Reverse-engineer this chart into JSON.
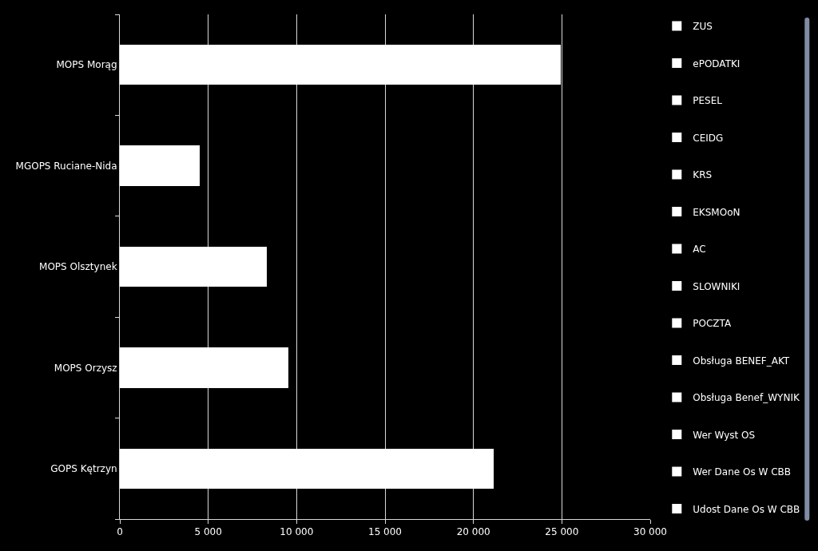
{
  "chart_data": {
    "type": "bar",
    "orientation": "horizontal",
    "stacked": true,
    "categories": [
      "MOPS Morąg",
      "MGOPS Ruciane-Nida",
      "MOPS Olsztynek",
      "MOPS Orzysz",
      "GOPS Kętrzyn"
    ],
    "series": [
      {
        "name": "ZUS",
        "color": "#ffffff",
        "values": [
          24950,
          4540,
          8300,
          9550,
          21150
        ]
      },
      {
        "name": "ePODATKI",
        "color": "#ffffff",
        "values": [
          null,
          null,
          null,
          null,
          null
        ]
      },
      {
        "name": "PESEL",
        "color": "#ffffff",
        "values": [
          null,
          null,
          null,
          null,
          null
        ]
      },
      {
        "name": "CEIDG",
        "color": "#ffffff",
        "values": [
          null,
          null,
          null,
          null,
          null
        ]
      },
      {
        "name": "KRS",
        "color": "#ffffff",
        "values": [
          null,
          null,
          null,
          null,
          null
        ]
      },
      {
        "name": "EKSMOoN",
        "color": "#ffffff",
        "values": [
          null,
          null,
          null,
          null,
          null
        ]
      },
      {
        "name": "AC",
        "color": "#ffffff",
        "values": [
          null,
          null,
          null,
          null,
          null
        ]
      },
      {
        "name": "SLOWNIKI",
        "color": "#ffffff",
        "values": [
          null,
          null,
          null,
          null,
          null
        ]
      },
      {
        "name": "POCZTA",
        "color": "#ffffff",
        "values": [
          null,
          null,
          null,
          null,
          null
        ]
      },
      {
        "name": "Obsługa BENEF_AKT",
        "color": "#ffffff",
        "values": [
          null,
          null,
          null,
          null,
          null
        ]
      },
      {
        "name": "Obsługa Benef_WYNIK",
        "color": "#ffffff",
        "values": [
          null,
          null,
          null,
          null,
          null
        ]
      },
      {
        "name": "Wer Wyst OS",
        "color": "#ffffff",
        "values": [
          null,
          null,
          null,
          null,
          null
        ]
      },
      {
        "name": "Wer Dane Os W CBB",
        "color": "#ffffff",
        "values": [
          null,
          null,
          null,
          null,
          null
        ]
      },
      {
        "name": "Udost Dane Os W CBB",
        "color": "#ffffff",
        "values": [
          null,
          null,
          null,
          null,
          null
        ]
      }
    ],
    "xlim": [
      0,
      30000
    ],
    "xticks": [
      {
        "value": 0,
        "label": "0"
      },
      {
        "value": 5000,
        "label": "5 000"
      },
      {
        "value": 10000,
        "label": "10 000"
      },
      {
        "value": 15000,
        "label": "15 000"
      },
      {
        "value": 20000,
        "label": "20 000"
      },
      {
        "value": 25000,
        "label": "25 000"
      },
      {
        "value": 30000,
        "label": "30 000"
      }
    ],
    "grid": "x",
    "legend": "right"
  }
}
